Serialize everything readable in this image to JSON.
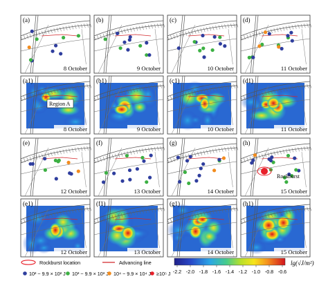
{
  "rows": [
    {
      "kind": "events",
      "panels": [
        {
          "label": "(a)",
          "date": "8 October"
        },
        {
          "label": "(b)",
          "date": "9 October"
        },
        {
          "label": "(c)",
          "date": "10 October"
        },
        {
          "label": "(d)",
          "date": "11 October"
        }
      ]
    },
    {
      "kind": "heatmap",
      "panels": [
        {
          "label": "(a1)",
          "date": "8 October",
          "annotation": "Region A"
        },
        {
          "label": "(b1)",
          "date": "9 October"
        },
        {
          "label": "(c1)",
          "date": "10 October"
        },
        {
          "label": "(d1)",
          "date": "11 October"
        }
      ]
    },
    {
      "kind": "events",
      "panels": [
        {
          "label": "(e)",
          "date": "12 October"
        },
        {
          "label": "(f)",
          "date": "13 October"
        },
        {
          "label": "(g)",
          "date": "14 October"
        },
        {
          "label": "(h)",
          "date": "15 October",
          "annotation": "Rockburst"
        }
      ]
    },
    {
      "kind": "heatmap",
      "panels": [
        {
          "label": "(e1)",
          "date": "12 October"
        },
        {
          "label": "(f1)",
          "date": "13 October"
        },
        {
          "label": "(g1)",
          "date": "14 October"
        },
        {
          "label": "(h1)",
          "date": "15 October"
        }
      ]
    }
  ],
  "legend": {
    "rockburst_location": "Rockburst location",
    "advancing_line": "Advancing line",
    "energy_classes": [
      {
        "label": "10² ~ 9.9 × 10² J",
        "color": "#2f3e9e"
      },
      {
        "label": "10³ ~ 9.9 × 10³ J",
        "color": "#3cb043"
      },
      {
        "label": "10⁴ ~ 9.9 × 10⁴ J",
        "color": "#f28c1e"
      },
      {
        "label": "≥10⁵ J",
        "color": "#e8202a"
      }
    ]
  },
  "colorbar": {
    "ticks": [
      "-2.2",
      "-2.0",
      "-1.8",
      "-1.6",
      "-1.4",
      "-1.2",
      "-1.0",
      "-0.8",
      "-0.6"
    ],
    "title": "lg(√J/m²)"
  },
  "colors": {
    "rockburst_ring": "#e8202a",
    "advancing_line": "#d2262a",
    "roadway": "#555555"
  }
}
